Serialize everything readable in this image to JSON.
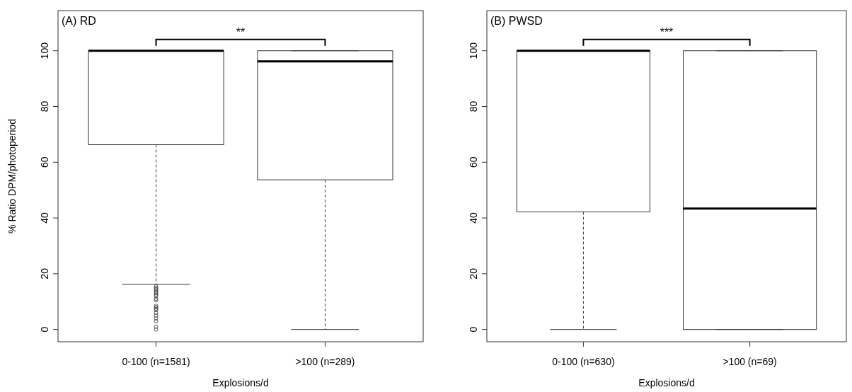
{
  "chart_data": [
    {
      "type": "box",
      "title": "(A) RD",
      "xlabel": "Explosions/d",
      "ylabel": "% Ratio DPM/photoperiod",
      "categories": [
        "0-100 (n=1581)",
        ">100 (n=289)"
      ],
      "boxes": [
        {
          "low": 16.2,
          "q1": 66.3,
          "median": 100,
          "q3": 100,
          "high": 100,
          "outliers": [
            15.5,
            15,
            14.5,
            14,
            13.5,
            13,
            12.5,
            12,
            11,
            10.5,
            8.5,
            8,
            7.5,
            7,
            6,
            5,
            4,
            3,
            1,
            0
          ]
        },
        {
          "low": 0,
          "q1": 53.7,
          "median": 96.2,
          "q3": 100,
          "high": 100
        }
      ],
      "ylim": [
        -4.4,
        114.4
      ],
      "yticks": [
        0,
        20,
        40,
        60,
        80,
        100
      ],
      "annotations": [
        "**"
      ]
    },
    {
      "type": "box",
      "title": "(B) PWSD",
      "xlabel": "Explosions/d",
      "categories": [
        "0-100 (n=630)",
        ">100 (n=69)"
      ],
      "boxes": [
        {
          "low": 0,
          "q1": 42.2,
          "median": 100,
          "q3": 100,
          "high": 100
        },
        {
          "low": 0,
          "q1": 0,
          "median": 43.4,
          "q3": 100,
          "high": 100
        }
      ],
      "ylim": [
        -4.4,
        114.4
      ],
      "yticks": [
        0,
        20,
        40,
        60,
        80,
        100
      ],
      "annotations": [
        "***"
      ]
    }
  ]
}
